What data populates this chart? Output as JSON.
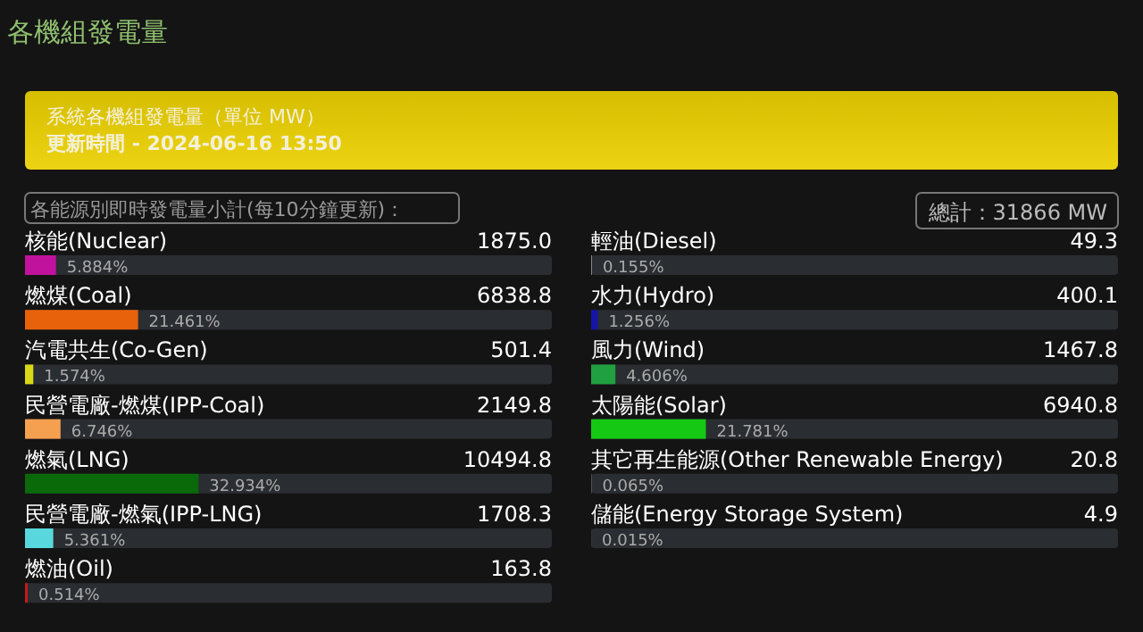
{
  "chart_data": [
    {
      "type": "bar",
      "orientation": "horizontal",
      "title": "各機組發電量",
      "subtitle": "系統各機組發電量（單位 MW）",
      "categories": [
        "核能(Nuclear)",
        "燃煤(Coal)",
        "汽電共生(Co-Gen)",
        "民營電廠-燃煤(IPP-Coal)",
        "燃氣(LNG)",
        "民營電廠-燃氣(IPP-LNG)",
        "燃油(Oil)"
      ],
      "values": [
        5.884,
        21.461,
        1.574,
        6.746,
        32.934,
        5.361,
        0.514
      ],
      "value_labels": [
        "5.884%",
        "21.461%",
        "1.574%",
        "6.746%",
        "32.934%",
        "5.361%",
        "0.514%"
      ],
      "colors": [
        "#c0129c",
        "#e8620c",
        "#d8d818",
        "#f4a050",
        "#0a6a0a",
        "#58d8dc",
        "#c01c1c"
      ],
      "xlim": [
        0,
        100
      ],
      "tick_labels": false,
      "annotations": [
        "更新時間 - 2024-06-16 13:50",
        "各能源別即時發電量小計(每10分鐘更新)：",
        "1875.0",
        "6838.8",
        "501.4",
        "2149.8",
        "10494.8",
        "1708.3",
        "163.8"
      ]
    },
    {
      "type": "bar",
      "orientation": "horizontal",
      "categories": [
        "輕油(Diesel)",
        "水力(Hydro)",
        "風力(Wind)",
        "太陽能(Solar)",
        "其它再生能源(Other Renewable Energy)",
        "儲能(Energy Storage System)"
      ],
      "values": [
        0.155,
        1.256,
        4.606,
        21.781,
        0.065,
        0.015
      ],
      "value_labels": [
        "0.155%",
        "1.256%",
        "4.606%",
        "21.781%",
        "0.065%",
        "0.015%"
      ],
      "colors": [
        "#909090",
        "#1414a8",
        "#20a040",
        "#14c814",
        "#909090",
        "#909090"
      ],
      "xlim": [
        0,
        100
      ],
      "tick_labels": false,
      "annotations": [
        "總計：31866 MW",
        "49.3",
        "400.1",
        "1467.8",
        "6940.8",
        "20.8",
        "4.9"
      ]
    }
  ]
}
